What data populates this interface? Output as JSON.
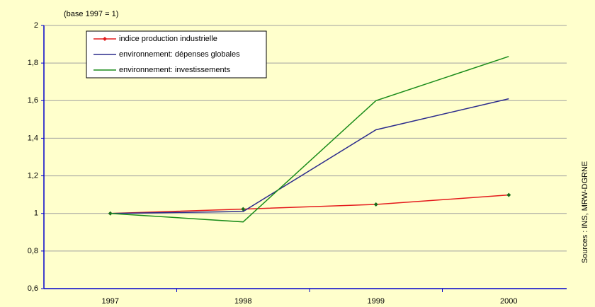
{
  "chart_data": {
    "type": "line",
    "subtitle": "(base 1997 = 1)",
    "source": "Sources : INS, MRW-DGRNE",
    "categories": [
      "1997",
      "1998",
      "1999",
      "2000"
    ],
    "series": [
      {
        "name": "indice production industrielle",
        "color": "#e41a1c",
        "marker": "diamond",
        "values": [
          1,
          1.023,
          1.048,
          1.098
        ]
      },
      {
        "name": "environnement: dépenses globales",
        "color": "#2b2b8c",
        "values": [
          1,
          1.01,
          1.445,
          1.61
        ]
      },
      {
        "name": "environnement: investissements",
        "color": "#1a8c1a",
        "values": [
          1,
          0.955,
          1.6,
          1.835
        ]
      }
    ],
    "ylim": [
      0.6,
      2
    ],
    "yticks": [
      {
        "value": 0.6,
        "label": "0,6"
      },
      {
        "value": 0.8,
        "label": "0,8"
      },
      1,
      {
        "value": 1.2,
        "label": "1,2"
      },
      {
        "value": 1.4,
        "label": "1,4"
      },
      {
        "value": 1.6,
        "label": "1,6"
      },
      {
        "value": 1.8,
        "label": "1,8"
      },
      2
    ],
    "grid": true,
    "legend": "top-left"
  }
}
